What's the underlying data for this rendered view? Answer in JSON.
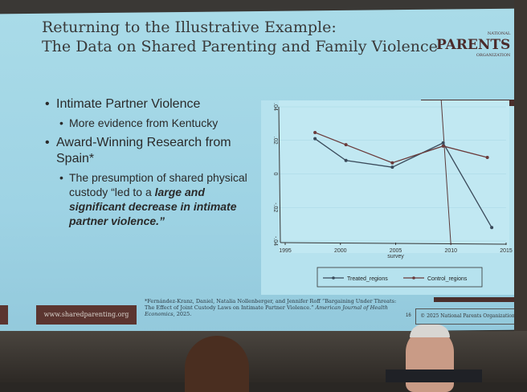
{
  "slide": {
    "title_line1": "Returning to the Illustrative Example:",
    "title_line2": "The Data on Shared Parenting and Family Violence",
    "logo": "NATIONAL PARENTS ORGANIZATION",
    "logo_main": "PARENTS",
    "logo_top": "NATIONAL",
    "logo_bottom": "ORGANIZATION",
    "bullets": [
      {
        "text": "Intimate Partner Violence",
        "sub": "More evidence from Kentucky"
      },
      {
        "text": "Award-Winning Research from Spain*",
        "sub_prefix": "The presumption of shared physical custody “led to a ",
        "sub_emph": "large and significant decrease in intimate partner violence.”"
      }
    ],
    "footnote_1": "*Fernández-Kranz, Daniel, Natalia Nollenberger, and Jennifer Roff “Bargaining Under Threats: The Effect of Joint Custody Laws on Intimate Partner Violence.” ",
    "footnote_journal": "American Journal of Health Economics",
    "footnote_2": ", 2025.",
    "url": "www.sharedparenting.org",
    "page_number": "16",
    "copyright": "© 2025 National Parents Organization",
    "colors": {
      "background": "#a9dbe8",
      "accent": "#5b3530",
      "text": "#2a2a2a"
    }
  },
  "chart_data": {
    "type": "line",
    "xlabel": "survey",
    "ylabel": "",
    "xlim": [
      1995,
      2015
    ],
    "ylim": [
      -0.04,
      0.04
    ],
    "xticks": [
      "1995",
      "2000",
      "2005",
      "2010",
      "2015"
    ],
    "yticks": [
      "-.04",
      "-.02",
      "0",
      ".02",
      ".04"
    ],
    "vertical_line_x": 2010,
    "legend_position": "bottom",
    "series": [
      {
        "name": "Treated_regions",
        "color": "#3a4a5a",
        "x": [
          1997.7,
          2000.5,
          2004.7,
          2009.3,
          2013.7
        ],
        "y": [
          0.021,
          0.008,
          0.004,
          0.0185,
          -0.032
        ]
      },
      {
        "name": "Control_regions",
        "color": "#6a3a3a",
        "x": [
          1997.7,
          2000.5,
          2004.7,
          2009.3,
          2013.3
        ],
        "y": [
          0.0247,
          0.0174,
          0.0066,
          0.0166,
          0.0098
        ]
      }
    ]
  }
}
